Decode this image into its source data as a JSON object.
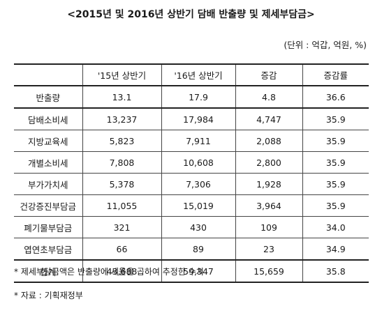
{
  "title": "<2015년 및 2016년 상반기 담배 반출량 및 제세부담금>",
  "unit": "(단위 : 억갑, 억원, %)",
  "table": {
    "headers": [
      "",
      "'15년 상반기",
      "'16년 상반기",
      "증감",
      "증감률"
    ],
    "rows": [
      [
        "반출량",
        "13.1",
        "17.9",
        "4.8",
        "36.6"
      ],
      [
        "담배소비세",
        "13,237",
        "17,984",
        "4,747",
        "35.9"
      ],
      [
        "지방교육세",
        "5,823",
        "7,911",
        "2,088",
        "35.9"
      ],
      [
        "개별소비세",
        "7,808",
        "10,608",
        "2,800",
        "35.9"
      ],
      [
        "부가가치세",
        "5,378",
        "7,306",
        "1,928",
        "35.9"
      ],
      [
        "건강증진부담금",
        "11,055",
        "15,019",
        "3,964",
        "35.9"
      ],
      [
        "폐기물부담금",
        "321",
        "430",
        "109",
        "34.0"
      ],
      [
        "엽연초부담금",
        "66",
        "89",
        "23",
        "34.9"
      ],
      [
        "합계",
        "43,688",
        "59,347",
        "15,659",
        "35.8"
      ]
    ]
  },
  "notes": [
    "* 제세부담금액은 반출량에 세율을 곱하여 추정한 수치",
    "* 자료 : 기획재정부"
  ]
}
